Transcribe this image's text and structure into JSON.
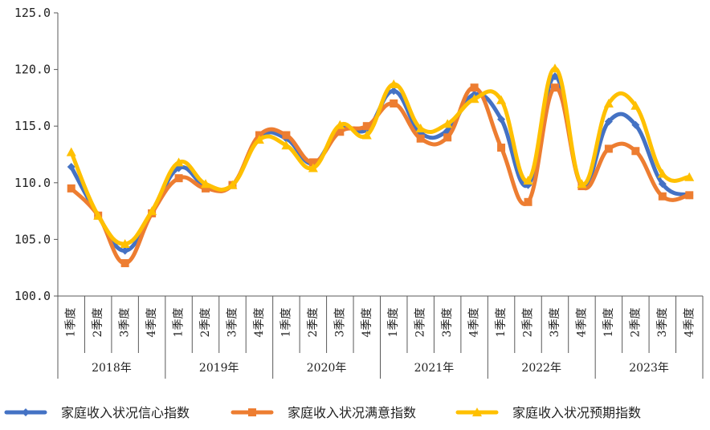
{
  "chart_data": {
    "type": "line",
    "categories": [
      "1季度",
      "2季度",
      "3季度",
      "4季度",
      "1季度",
      "2季度",
      "3季度",
      "4季度",
      "1季度",
      "2季度",
      "3季度",
      "4季度",
      "1季度",
      "2季度",
      "3季度",
      "4季度",
      "1季度",
      "2季度",
      "3季度",
      "4季度",
      "1季度",
      "2季度",
      "3季度",
      "4季度"
    ],
    "groups": [
      {
        "label": "2018年",
        "span": 4
      },
      {
        "label": "2019年",
        "span": 4
      },
      {
        "label": "2020年",
        "span": 4
      },
      {
        "label": "2021年",
        "span": 4
      },
      {
        "label": "2022年",
        "span": 4
      },
      {
        "label": "2023年",
        "span": 4
      }
    ],
    "series": [
      {
        "name": "家庭收入状况信心指数",
        "color": "#4472C4",
        "marker": "diamond",
        "values": [
          111.4,
          107.1,
          104.0,
          107.4,
          111.3,
          109.7,
          109.8,
          114.0,
          113.9,
          111.7,
          114.8,
          114.7,
          118.1,
          114.4,
          114.6,
          117.8,
          115.6,
          109.8,
          119.4,
          109.8,
          115.4,
          115.1,
          109.9,
          108.9
        ]
      },
      {
        "name": "家庭收入状况满意指数",
        "color": "#ED7D31",
        "marker": "square",
        "values": [
          109.5,
          107.1,
          102.9,
          107.3,
          110.4,
          109.5,
          109.8,
          114.2,
          114.2,
          111.8,
          114.5,
          115.0,
          117.0,
          113.9,
          114.0,
          118.4,
          113.1,
          108.3,
          118.4,
          109.7,
          113.0,
          112.8,
          108.8,
          108.9
        ]
      },
      {
        "name": "家庭收入状况预期指数",
        "color": "#FFC000",
        "marker": "triangle",
        "values": [
          112.7,
          107.1,
          104.6,
          107.5,
          111.8,
          109.9,
          109.8,
          113.8,
          113.3,
          111.3,
          115.1,
          114.2,
          118.7,
          114.8,
          115.2,
          117.4,
          117.3,
          110.2,
          120.1,
          109.9,
          117.0,
          116.8,
          110.8,
          110.5
        ]
      }
    ],
    "ylim": [
      100.0,
      125.0
    ],
    "yticks": [
      "100.0",
      "105.0",
      "110.0",
      "115.0",
      "120.0",
      "125.0"
    ],
    "legend_position": "bottom",
    "grid": false
  }
}
